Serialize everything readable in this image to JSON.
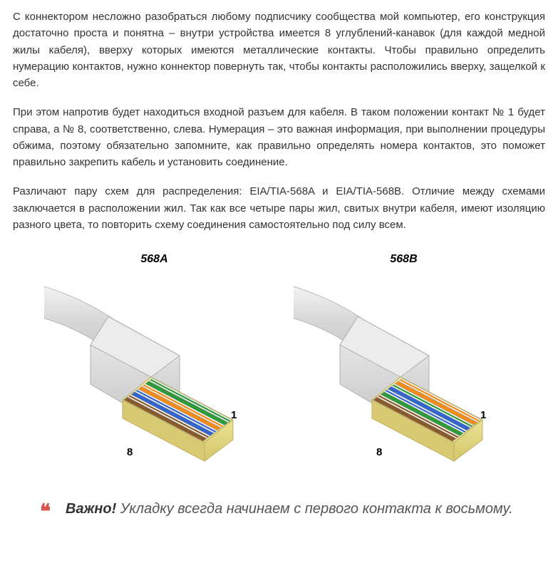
{
  "paragraphs": [
    "С коннектором несложно разобраться любому подписчику сообщества мой компьютер, его конструкция достаточно проста и понятна – внутри устройства имеется 8 углублений-канавок (для каждой медной жилы кабеля), вверху которых имеются металлические контакты. Чтобы правильно определить нумерацию контактов, нужно коннектор повернуть так, чтобы контакты расположились вверху, защелкой к себе.",
    "При этом напротив будет находиться входной разъем для кабеля. В таком положении контакт № 1 будет справа, а № 8, соответственно, слева. Нумерация – это важная информация, при выполнении процедуры обжима, поэтому обязательно запомните, как правильно определять номера контактов, это поможет правильно закрепить кабель и установить соединение.",
    "Различают пару схем для распределения: EIA/TIA-568A и EIA/TIA-568B. Отличие между схемами заключается в расположении жил. Так как все четыре пары жил, свитых внутри кабеля, имеют изоляцию разного цвета, то повторить схему соединения самостоятельно под силу всем."
  ],
  "diagram": {
    "left": {
      "title": "568A",
      "wires": [
        "#ffffff",
        "#2e9b3a",
        "#ffffff",
        "#f28c1a",
        "#ffffff",
        "#3366cc",
        "#ffffff",
        "#8b5a2b"
      ],
      "wires_stripe": [
        "#2e9b3a",
        null,
        "#f28c1a",
        null,
        "#3366cc",
        null,
        "#8b5a2b",
        null
      ],
      "pin_right": "1",
      "pin_left": "8"
    },
    "right": {
      "title": "568B",
      "wires": [
        "#ffffff",
        "#f28c1a",
        "#ffffff",
        "#3366cc",
        "#ffffff",
        "#2e9b3a",
        "#ffffff",
        "#8b5a2b"
      ],
      "wires_stripe": [
        "#f28c1a",
        null,
        "#2e9b3a",
        null,
        "#3366cc",
        null,
        "#8b5a2b",
        null
      ],
      "pin_right": "1",
      "pin_left": "8"
    },
    "body_color": "#f0e89a",
    "body_shadow": "#d8ca6a",
    "boot_color": "#e8e8e8",
    "boot_shadow": "#cfcfcf",
    "cable_color": "#dcdcdc"
  },
  "callout": {
    "strong": "Важно!",
    "text": " Укладку всегда начинаем с первого контакта к восьмому."
  }
}
